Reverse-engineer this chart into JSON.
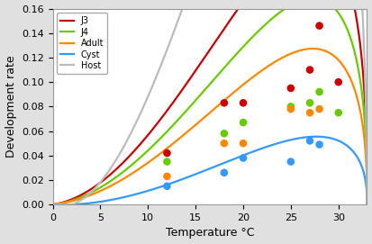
{
  "title": "",
  "xlabel": "Temperature °C",
  "ylabel": "Development rate",
  "xlim": [
    0,
    33
  ],
  "ylim": [
    0,
    0.16
  ],
  "xticks": [
    0,
    5,
    10,
    15,
    20,
    25,
    30
  ],
  "yticks": [
    0,
    0.02,
    0.04,
    0.06,
    0.08,
    0.1,
    0.12,
    0.14,
    0.16
  ],
  "series": [
    {
      "name": "J3",
      "color": "#cc0000",
      "a": 0.000135,
      "tmin": -2.0,
      "tmax": 33.0,
      "m": 2.5
    },
    {
      "name": "J4",
      "color": "#66cc00",
      "a": 0.000105,
      "tmin": -2.0,
      "tmax": 33.0,
      "m": 2.5
    },
    {
      "name": "Adult",
      "color": "#ff8800",
      "a": 7.8e-05,
      "tmin": -2.5,
      "tmax": 33.0,
      "m": 2.5
    },
    {
      "name": "Cyst",
      "color": "#3399ff",
      "a": 4e-05,
      "tmin": 2.0,
      "tmax": 33.0,
      "m": 2.5
    },
    {
      "name": "Host",
      "color": "#bbbbbb",
      "a": 0.00023,
      "tmin": 2.0,
      "tmax": 33.0,
      "m": 2.0
    }
  ],
  "points": {
    "J3": [
      [
        12,
        0.042
      ],
      [
        18,
        0.083
      ],
      [
        20,
        0.083
      ],
      [
        25,
        0.095
      ],
      [
        27,
        0.11
      ],
      [
        28,
        0.146
      ],
      [
        30,
        0.1
      ]
    ],
    "J4": [
      [
        12,
        0.035
      ],
      [
        18,
        0.058
      ],
      [
        20,
        0.067
      ],
      [
        25,
        0.08
      ],
      [
        27,
        0.083
      ],
      [
        28,
        0.092
      ],
      [
        30,
        0.075
      ]
    ],
    "Adult": [
      [
        12,
        0.023
      ],
      [
        18,
        0.05
      ],
      [
        20,
        0.05
      ],
      [
        25,
        0.078
      ],
      [
        27,
        0.075
      ],
      [
        28,
        0.078
      ]
    ],
    "Cyst": [
      [
        12,
        0.015
      ],
      [
        18,
        0.026
      ],
      [
        20,
        0.038
      ],
      [
        25,
        0.035
      ],
      [
        27,
        0.052
      ],
      [
        28,
        0.049
      ]
    ]
  },
  "point_colors": {
    "J3": "#cc0000",
    "J4": "#66cc00",
    "Adult": "#ff8800",
    "Cyst": "#3399ff"
  },
  "background_color": "#e0e0e0",
  "plot_background": "#ffffff"
}
